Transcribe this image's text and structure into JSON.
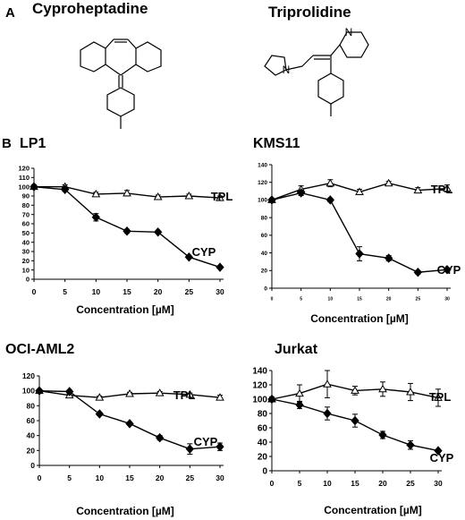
{
  "panel_a": {
    "letter": "A",
    "drugs": [
      {
        "name": "Cyproheptadine"
      },
      {
        "name": "Triprolidine"
      }
    ]
  },
  "panel_b": {
    "letter": "B"
  },
  "chart_data": [
    {
      "type": "line",
      "title": "LP1",
      "xlabel": "Concentration [µM]",
      "ylabel": "",
      "x": [
        0,
        5,
        10,
        15,
        20,
        25,
        30
      ],
      "xlim": [
        0,
        30
      ],
      "ylim": [
        0,
        120
      ],
      "yticks": [
        0,
        10,
        20,
        30,
        40,
        50,
        60,
        70,
        80,
        90,
        100,
        110,
        120
      ],
      "series": [
        {
          "name": "TPL",
          "marker": "open-triangle",
          "values": [
            100,
            100,
            92,
            93,
            89,
            90,
            88
          ],
          "errors": [
            2,
            2,
            2,
            3,
            2,
            2,
            2
          ]
        },
        {
          "name": "CYP",
          "marker": "filled-diamond",
          "values": [
            100,
            97,
            67,
            52,
            51,
            24,
            13
          ],
          "errors": [
            2,
            2,
            4,
            2,
            1,
            1,
            1
          ]
        }
      ]
    },
    {
      "type": "line",
      "title": "KMS11",
      "xlabel": "",
      "ylabel": "",
      "x": [
        0,
        5,
        10,
        15,
        20,
        25,
        30
      ],
      "xlim": [
        0,
        30
      ],
      "ylim": [
        0,
        140
      ],
      "yticks": [
        0,
        20,
        40,
        60,
        80,
        100,
        120,
        140
      ],
      "series": [
        {
          "name": "TPL",
          "marker": "open-triangle",
          "values": [
            100,
            112,
            119,
            109,
            119,
            111,
            113
          ],
          "errors": [
            2,
            4,
            4,
            3,
            2,
            3,
            4
          ]
        },
        {
          "name": "CYP",
          "marker": "filled-diamond",
          "values": [
            100,
            108,
            100,
            39,
            34,
            18,
            21
          ],
          "errors": [
            2,
            3,
            2,
            8,
            3,
            2,
            2
          ]
        }
      ]
    },
    {
      "type": "line",
      "title": "OCI-AML2",
      "xlabel": "Concentration [µM]",
      "ylabel": "",
      "x": [
        0,
        5,
        10,
        15,
        20,
        25,
        30
      ],
      "xlim": [
        0,
        30
      ],
      "ylim": [
        0,
        120
      ],
      "yticks": [
        0,
        20,
        40,
        60,
        80,
        100,
        120
      ],
      "series": [
        {
          "name": "TPL",
          "marker": "open-triangle",
          "values": [
            100,
            94,
            91,
            96,
            97,
            95,
            91
          ],
          "errors": [
            2,
            2,
            2,
            2,
            2,
            2,
            3
          ]
        },
        {
          "name": "CYP",
          "marker": "filled-diamond",
          "values": [
            100,
            99,
            69,
            56,
            37,
            22,
            25
          ],
          "errors": [
            2,
            2,
            2,
            2,
            3,
            7,
            5
          ]
        }
      ]
    },
    {
      "type": "line",
      "title": "Jurkat",
      "xlabel": "Concentration [µM]",
      "ylabel": "",
      "x": [
        0,
        5,
        10,
        15,
        20,
        25,
        30
      ],
      "xlim": [
        0,
        30
      ],
      "ylim": [
        0,
        140
      ],
      "yticks": [
        0,
        20,
        40,
        60,
        80,
        100,
        120,
        140
      ],
      "series": [
        {
          "name": "TPL",
          "marker": "open-triangle",
          "values": [
            100,
            108,
            121,
            112,
            114,
            110,
            102
          ],
          "errors": [
            3,
            12,
            19,
            6,
            10,
            12,
            12
          ]
        },
        {
          "name": "CYP",
          "marker": "filled-diamond",
          "values": [
            100,
            92,
            80,
            70,
            50,
            36,
            28
          ],
          "errors": [
            3,
            5,
            9,
            9,
            5,
            6,
            2
          ]
        }
      ]
    }
  ]
}
